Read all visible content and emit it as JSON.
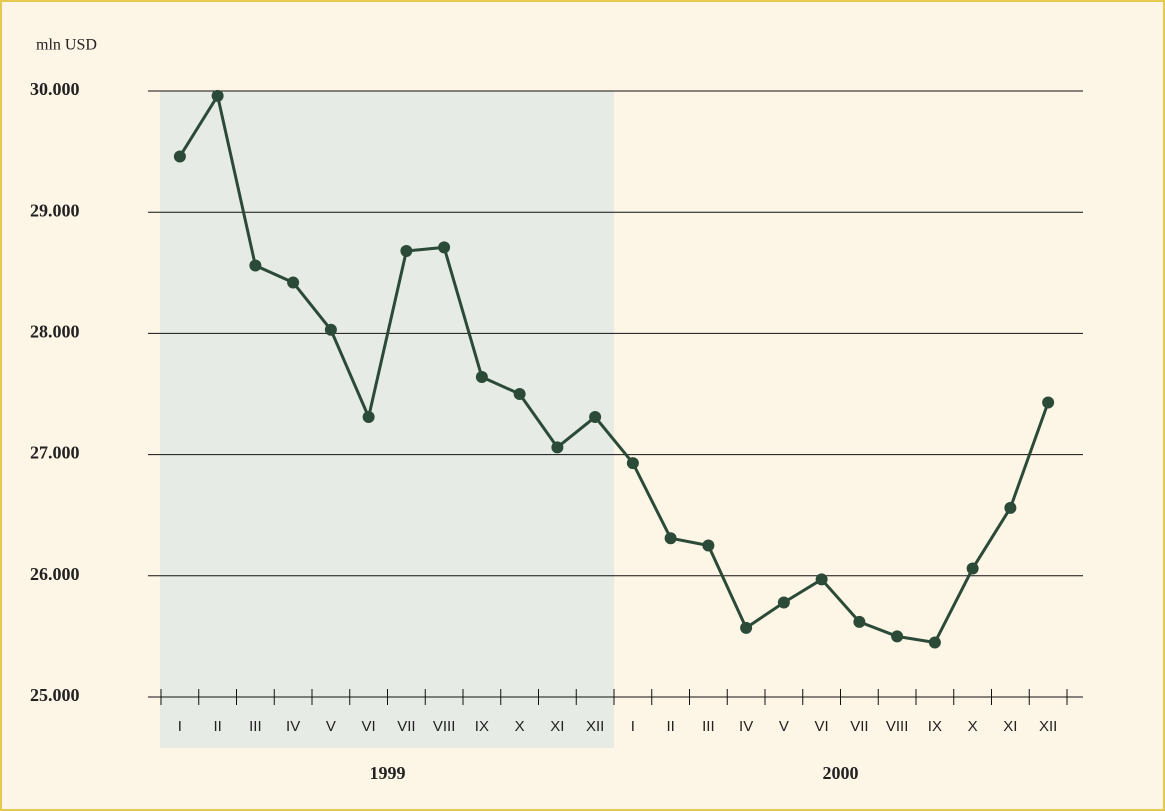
{
  "chart_data": {
    "type": "line",
    "y_axis_label": "mln USD",
    "categories": [
      "I",
      "II",
      "III",
      "IV",
      "V",
      "VI",
      "VII",
      "VIII",
      "IX",
      "X",
      "XI",
      "XII",
      "I",
      "II",
      "III",
      "IV",
      "V",
      "VI",
      "VII",
      "VIII",
      "IX",
      "X",
      "XI",
      "XII"
    ],
    "groups": [
      "1999",
      "2000"
    ],
    "series": [
      {
        "color": "#2b4a38",
        "values": [
          29460,
          29960,
          28560,
          28420,
          28030,
          27310,
          28680,
          28710,
          27640,
          27500,
          27060,
          27310,
          26930,
          26310,
          26250,
          25570,
          25780,
          25970,
          25620,
          25500,
          25450,
          26060,
          26560,
          27430
        ]
      }
    ],
    "ylim": [
      25000,
      30000
    ],
    "yticks": [
      {
        "value": 25000,
        "label": "25.000"
      },
      {
        "value": 26000,
        "label": "26.000"
      },
      {
        "value": 27000,
        "label": "27.000"
      },
      {
        "value": 28000,
        "label": "28.000"
      },
      {
        "value": 29000,
        "label": "29.000"
      },
      {
        "value": 30000,
        "label": "30.000"
      }
    ],
    "grid": true,
    "highlight_color": "#e7ebe5"
  }
}
